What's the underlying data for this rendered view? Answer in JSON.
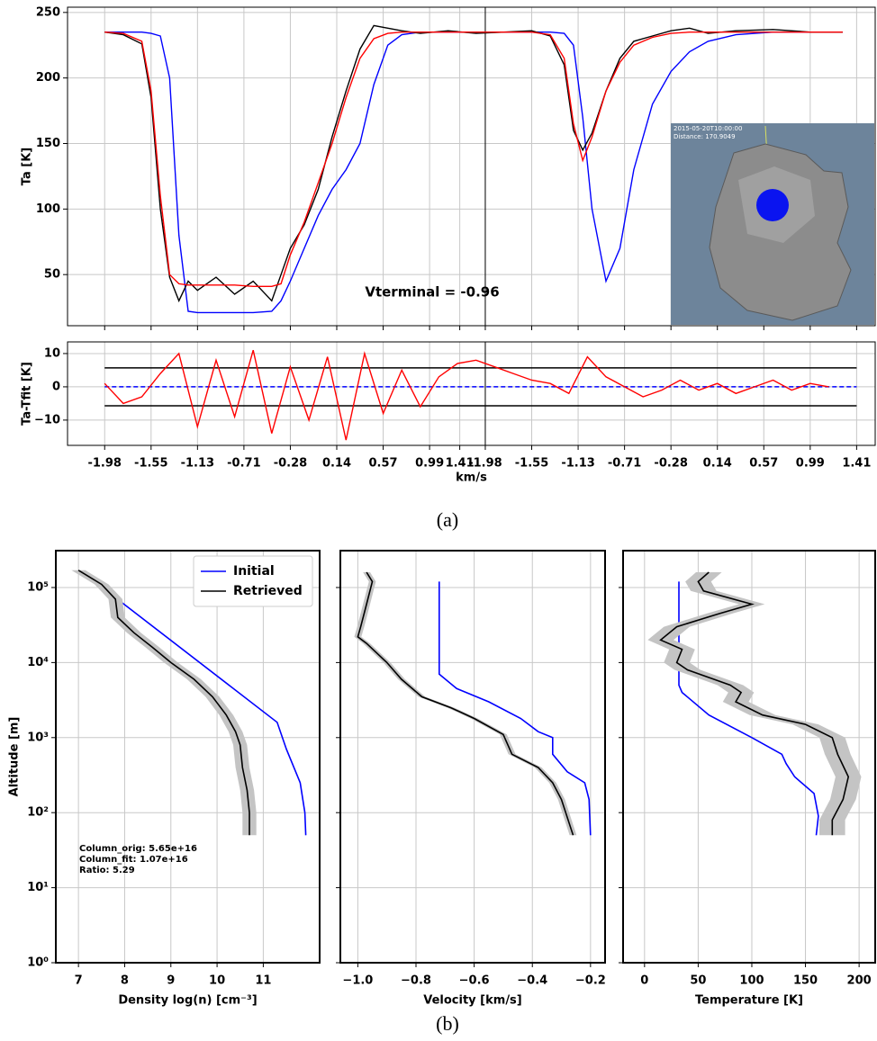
{
  "chart_data": [
    {
      "type": "line",
      "ylabel": "Ta [K]",
      "annotation": "Vterminal = -0.96",
      "xlim": [
        -0.8,
        16.6
      ],
      "ylim": [
        11,
        254
      ],
      "yticks": [
        50,
        100,
        150,
        200,
        250
      ],
      "grid": true,
      "x": [
        0,
        0.4,
        0.8,
        1.0,
        1.2,
        1.4,
        1.6,
        1.8,
        2.0,
        2.4,
        2.8,
        3.2,
        3.6,
        3.8,
        4.0,
        4.3,
        4.6,
        4.9,
        5.2,
        5.5,
        5.8,
        6.1,
        6.4,
        6.8,
        7.4,
        8.0,
        8.6,
        9.2,
        9.6,
        9.9,
        10.1,
        10.3,
        10.5,
        10.8,
        11.1,
        11.4,
        11.8,
        12.2,
        12.6,
        13.0,
        13.6,
        14.4,
        15.2,
        15.9
      ],
      "series": [
        {
          "color": "#0000ff",
          "values": [
            235,
            235,
            235,
            234,
            232,
            200,
            80,
            22,
            21,
            21,
            21,
            21,
            22,
            30,
            45,
            70,
            95,
            115,
            130,
            150,
            195,
            225,
            233,
            235,
            235,
            235,
            235,
            235,
            235,
            234,
            225,
            170,
            100,
            45,
            70,
            130,
            180,
            205,
            220,
            228,
            233,
            235,
            235,
            235
          ]
        },
        {
          "color": "#000000",
          "values": [
            235,
            233,
            226,
            185,
            100,
            48,
            30,
            45,
            38,
            48,
            35,
            45,
            30,
            50,
            70,
            88,
            115,
            155,
            190,
            222,
            240,
            238,
            236,
            234,
            236,
            234,
            235,
            236,
            232,
            210,
            160,
            145,
            158,
            190,
            215,
            228,
            232,
            236,
            238,
            234,
            236,
            237,
            235,
            235
          ]
        },
        {
          "color": "#ff0000",
          "values": [
            235,
            234,
            228,
            190,
            110,
            50,
            43,
            42,
            42,
            42,
            42,
            41,
            41,
            43,
            65,
            90,
            120,
            150,
            185,
            215,
            230,
            234,
            235,
            235,
            235,
            235,
            235,
            235,
            233,
            215,
            165,
            137,
            155,
            190,
            212,
            225,
            231,
            234,
            235,
            235,
            235,
            235,
            235,
            235
          ]
        }
      ]
    },
    {
      "type": "line",
      "ylabel": "Ta-Tfit [K]",
      "xlabel": "km/s",
      "xlim": [
        -0.8,
        16.6
      ],
      "ylim": [
        -17.6,
        13.5
      ],
      "grid": true,
      "yticks": [
        10,
        0,
        {
          "value": -10,
          "label": "−10"
        }
      ],
      "xticks": [
        {
          "value": 0,
          "label": "-1.98"
        },
        {
          "value": 1,
          "label": "-1.55"
        },
        {
          "value": 2,
          "label": "-1.13"
        },
        {
          "value": 3,
          "label": "-0.71"
        },
        {
          "value": 4,
          "label": "-0.28"
        },
        {
          "value": 5,
          "label": "0.14"
        },
        {
          "value": 6,
          "label": "0.57"
        },
        {
          "value": 7,
          "label": "0.99"
        },
        {
          "value": 7.65,
          "label": "1.41"
        },
        {
          "value": 8.2,
          "label": "-1.98"
        },
        {
          "value": 9.2,
          "label": "-1.55"
        },
        {
          "value": 10.2,
          "label": "-1.13"
        },
        {
          "value": 11.2,
          "label": "-0.71"
        },
        {
          "value": 12.2,
          "label": "-0.28"
        },
        {
          "value": 13.2,
          "label": "0.14"
        },
        {
          "value": 14.2,
          "label": "0.57"
        },
        {
          "value": 15.2,
          "label": "0.99"
        },
        {
          "value": 16.2,
          "label": "1.41"
        }
      ],
      "hlines": [
        {
          "value": 5.7,
          "color": "#000000"
        },
        {
          "value": -5.7,
          "color": "#000000"
        },
        {
          "value": 0,
          "color": "#0000ff",
          "dashed": true
        }
      ],
      "x": [
        0,
        0.4,
        0.8,
        1.2,
        1.6,
        2.0,
        2.4,
        2.8,
        3.2,
        3.6,
        4.0,
        4.4,
        4.8,
        5.2,
        5.6,
        6.0,
        6.4,
        6.8,
        7.2,
        7.6,
        8.0,
        8.4,
        8.8,
        9.2,
        9.6,
        10.0,
        10.4,
        10.8,
        11.2,
        11.6,
        12.0,
        12.4,
        12.8,
        13.2,
        13.6,
        14.0,
        14.4,
        14.8,
        15.2,
        15.6
      ],
      "series": [
        {
          "color": "#ff0000",
          "values": [
            1,
            -5,
            -3,
            4,
            10,
            -12,
            8,
            -9,
            11,
            -14,
            6,
            -10,
            9,
            -16,
            10,
            -8,
            5,
            -6,
            3,
            7,
            8,
            6,
            4,
            2,
            1,
            -2,
            9,
            3,
            0,
            -3,
            -1,
            2,
            -1,
            1,
            -2,
            0,
            2,
            -1,
            1,
            0
          ]
        }
      ]
    },
    {
      "type": "line",
      "ylabel": "Altitude [m]",
      "xlabel": "Density log(n) [cm⁻³]",
      "legend": "upper right",
      "xlim": [
        6.51,
        12.22
      ],
      "xticks": [
        7,
        8,
        9,
        10,
        11
      ],
      "ylim": [
        1,
        310000
      ],
      "log_y": true,
      "grid": true,
      "yticks": [
        {
          "value": 1,
          "label": "10⁰"
        },
        {
          "value": 10,
          "label": "10¹"
        },
        {
          "value": 100,
          "label": "10²"
        },
        {
          "value": 1000,
          "label": "10³"
        },
        {
          "value": 10000,
          "label": "10⁴"
        },
        {
          "value": 100000,
          "label": "10⁵"
        }
      ],
      "annotations": [
        "Column_orig: 5.65e+16",
        "Column_fit: 1.07e+16",
        "Ratio: 5.29"
      ],
      "series": [
        {
          "name": "Initial",
          "color": "#0000ff",
          "x": [
            7.35,
            11.3,
            11.5,
            11.8,
            11.9,
            11.92
          ],
          "values": [
            120000,
            1600,
            700,
            250,
            100,
            50
          ]
        },
        {
          "name": "Retrieved",
          "color": "#000000",
          "error": 0.15,
          "x": [
            7.0,
            7.5,
            7.8,
            7.85,
            8.2,
            8.6,
            9.0,
            9.5,
            9.9,
            10.2,
            10.4,
            10.5,
            10.55,
            10.65,
            10.7,
            10.7
          ],
          "values": [
            170000,
            110000,
            70000,
            40000,
            25000,
            16000,
            10000,
            6000,
            3500,
            2000,
            1200,
            800,
            400,
            200,
            100,
            50
          ]
        }
      ]
    },
    {
      "type": "line",
      "xlabel": "Velocity [km/s]",
      "xlim": [
        -1.06,
        -0.15
      ],
      "grid": true,
      "xticks": [
        {
          "value": -1.0,
          "label": "−1.0"
        },
        {
          "value": -0.8,
          "label": "−0.8"
        },
        {
          "value": -0.6,
          "label": "−0.6"
        },
        {
          "value": -0.4,
          "label": "−0.4"
        },
        {
          "value": -0.2,
          "label": "−0.2"
        }
      ],
      "series": [
        {
          "color": "#0000ff",
          "x": [
            -0.72,
            -0.72,
            -0.66,
            -0.55,
            -0.44,
            -0.38,
            -0.33,
            -0.33,
            -0.28,
            -0.22,
            -0.205,
            -0.2
          ],
          "values": [
            120000,
            7000,
            4500,
            3000,
            1800,
            1200,
            1000,
            600,
            350,
            250,
            150,
            50
          ]
        },
        {
          "color": "#000000",
          "error": 0.012,
          "x": [
            -0.97,
            -0.95,
            -0.97,
            -0.99,
            -1.0,
            -0.97,
            -0.9,
            -0.85,
            -0.78,
            -0.68,
            -0.6,
            -0.5,
            -0.47,
            -0.38,
            -0.33,
            -0.3,
            -0.26
          ],
          "values": [
            160000,
            120000,
            60000,
            30000,
            22000,
            18000,
            10000,
            6000,
            3500,
            2500,
            1800,
            1100,
            600,
            400,
            250,
            150,
            50
          ]
        }
      ]
    },
    {
      "type": "line",
      "xlabel": "Temperature [K]",
      "xlim": [
        -20,
        215
      ],
      "xticks": [
        0,
        50,
        100,
        150,
        200
      ],
      "grid": true,
      "series": [
        {
          "color": "#0000ff",
          "x": [
            32,
            32,
            35,
            60,
            100,
            128,
            132,
            140,
            158,
            162,
            160
          ],
          "values": [
            120000,
            5000,
            4000,
            2000,
            1000,
            600,
            450,
            300,
            180,
            90,
            50
          ]
        },
        {
          "color": "#000000",
          "error": 12,
          "x": [
            60,
            50,
            55,
            100,
            70,
            30,
            15,
            35,
            30,
            40,
            80,
            90,
            85,
            110,
            150,
            175,
            180,
            190,
            185,
            175,
            175
          ],
          "values": [
            160000,
            120000,
            90000,
            60000,
            45000,
            30000,
            20000,
            15000,
            10000,
            8000,
            5000,
            4000,
            3000,
            2000,
            1500,
            1000,
            600,
            300,
            150,
            80,
            50
          ]
        }
      ]
    }
  ],
  "inset": {
    "timestamp": "2015-05-20T10:00:00",
    "distance": "Distance: 170.9049"
  },
  "captions": [
    "(a)",
    "(b)"
  ]
}
